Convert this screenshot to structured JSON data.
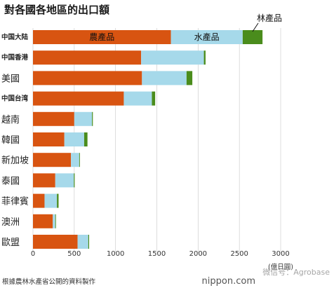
{
  "chart_data": {
    "type": "bar",
    "orientation": "horizontal",
    "stacked": true,
    "title": "對各國各地區的出口額",
    "unit_label": "(億日圓)",
    "categories": [
      "中国大陆",
      "中国香港",
      "美國",
      "中国台湾",
      "越南",
      "韓國",
      "新加坡",
      "泰國",
      "菲律賓",
      "澳洲",
      "歐盟"
    ],
    "series": [
      {
        "name": "農產品",
        "color": "#d85411",
        "values": [
          1670,
          1310,
          1320,
          1100,
          500,
          380,
          460,
          270,
          140,
          240,
          540
        ]
      },
      {
        "name": "水產品",
        "color": "#a6d9ea",
        "values": [
          870,
          760,
          540,
          340,
          215,
          240,
          100,
          225,
          150,
          30,
          130
        ]
      },
      {
        "name": "林產品",
        "color": "#4a8c1c",
        "values": [
          240,
          20,
          70,
          40,
          10,
          40,
          8,
          10,
          20,
          8,
          10
        ]
      }
    ],
    "x_ticks": [
      0,
      500,
      1000,
      1500,
      2000,
      2500,
      3000
    ],
    "xlim": [
      0,
      3000
    ],
    "grid": "vertical",
    "legend": "inline labels in top bar"
  },
  "footer": {
    "source": "根據農林水產省公開的資料製作",
    "brand": "nippon.com",
    "watermark": "微信号：Agrobase"
  }
}
